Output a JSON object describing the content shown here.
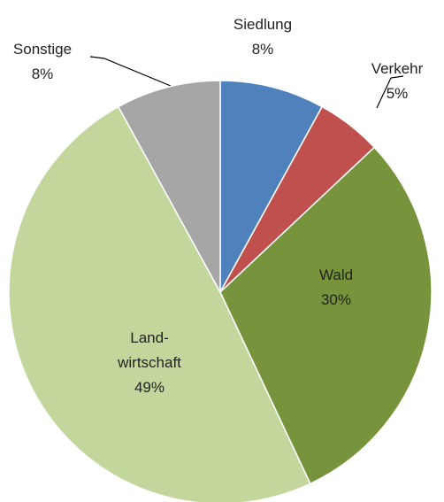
{
  "chart_data": {
    "type": "pie",
    "categories": [
      "Siedlung",
      "Verkehr",
      "Wald",
      "Land-\nwirtschaft",
      "Sonstige"
    ],
    "values": [
      8,
      5,
      30,
      49,
      8
    ],
    "value_labels": [
      "8%",
      "5%",
      "30%",
      "49%",
      "8%"
    ],
    "colors": [
      "#4f81bd",
      "#c0504d",
      "#77933c",
      "#c3d69b",
      "#a6a6a6"
    ]
  }
}
